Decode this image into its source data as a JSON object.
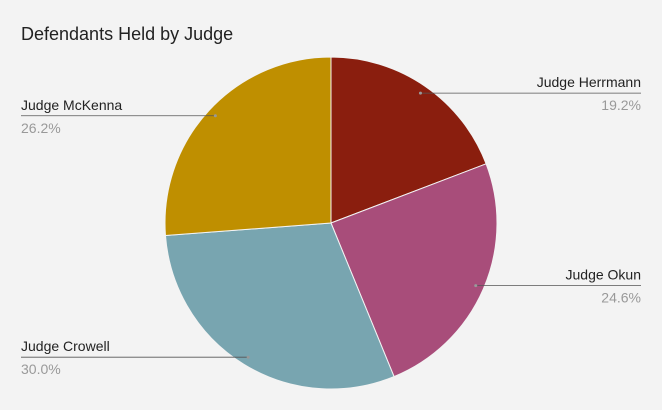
{
  "chart_data": {
    "type": "pie",
    "title": "Defendants Held by Judge",
    "categories": [
      "Judge Herrmann",
      "Judge Okun",
      "Judge Crowell",
      "Judge McKenna"
    ],
    "values": [
      19.2,
      24.6,
      30.0,
      26.2
    ],
    "value_labels": [
      "19.2%",
      "24.6%",
      "30.0%",
      "26.2%"
    ],
    "colors": [
      "#8a1e0e",
      "#a84d7a",
      "#78a5b0",
      "#bf8f00"
    ]
  }
}
